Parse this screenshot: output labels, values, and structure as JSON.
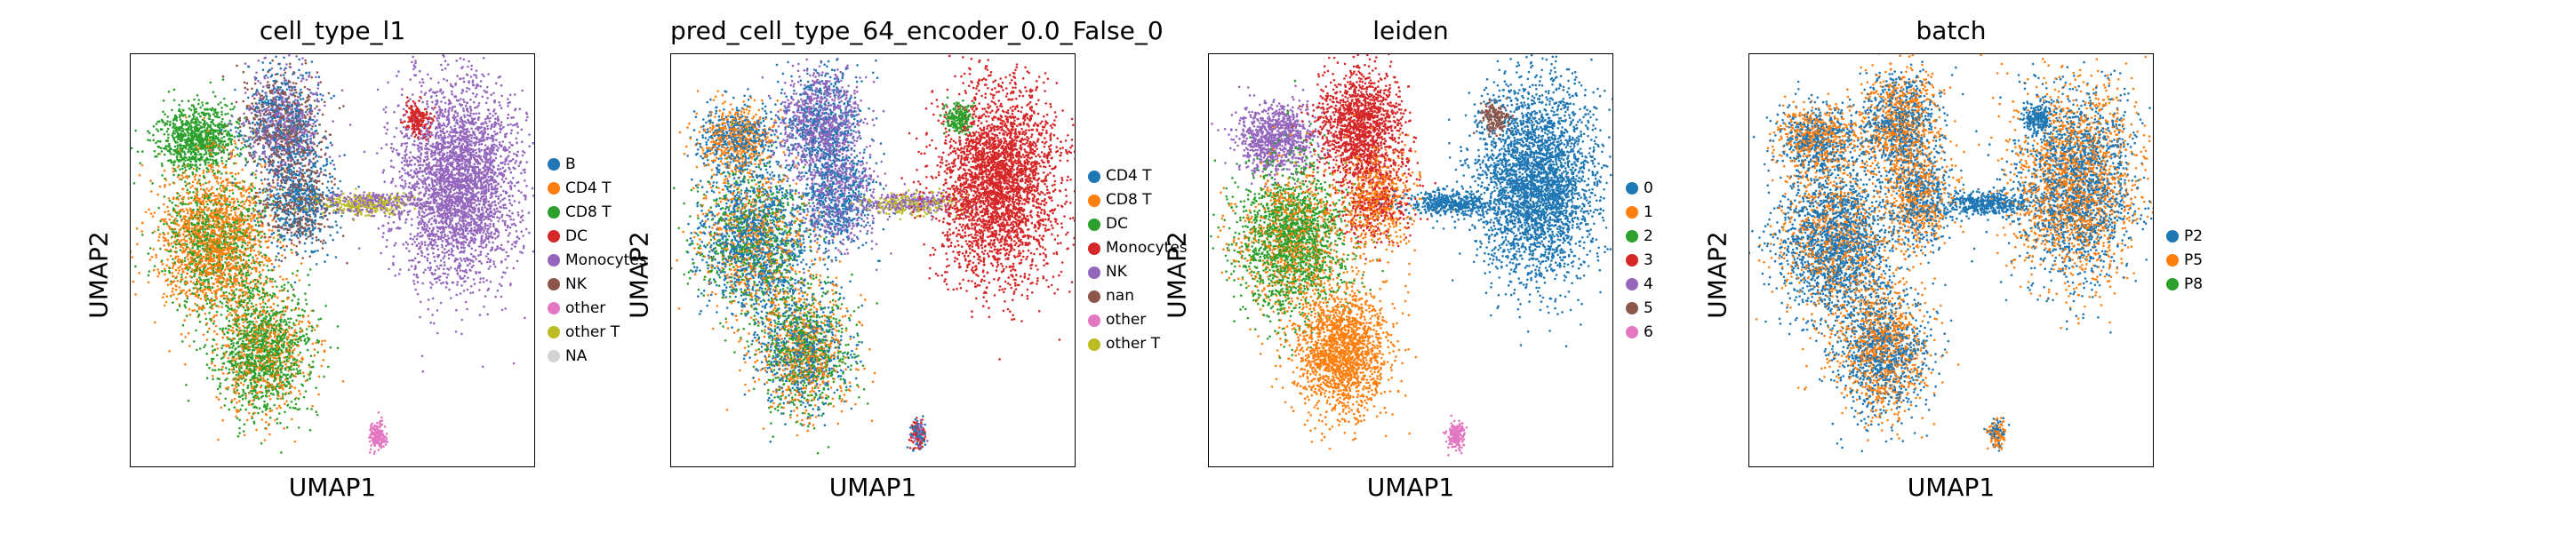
{
  "figure": {
    "panels": [
      {
        "title": "cell_type_l1",
        "xlabel": "UMAP1",
        "ylabel": "UMAP2",
        "legend": [
          {
            "label": "B",
            "color": "#1f77b4"
          },
          {
            "label": "CD4 T",
            "color": "#ff7f0e"
          },
          {
            "label": "CD8 T",
            "color": "#2ca02c"
          },
          {
            "label": "DC",
            "color": "#d62728"
          },
          {
            "label": "Monocytes",
            "color": "#9467bd"
          },
          {
            "label": "NK",
            "color": "#8c564b"
          },
          {
            "label": "other",
            "color": "#e377c2"
          },
          {
            "label": "other T",
            "color": "#bcbd22"
          },
          {
            "label": "NA",
            "color": "#d3d3d3"
          }
        ],
        "clusters": [
          {
            "name": "upper-left",
            "colors": [
              "#2ca02c"
            ]
          },
          {
            "name": "mid-left",
            "colors": [
              "#ff7f0e",
              "#ff7f0e",
              "#2ca02c"
            ]
          },
          {
            "name": "lower-left",
            "colors": [
              "#2ca02c",
              "#ff7f0e",
              "#2ca02c"
            ]
          },
          {
            "name": "top-center",
            "colors": [
              "#1f77b4",
              "#8c564b",
              "#9467bd"
            ]
          },
          {
            "name": "mid-center",
            "colors": [
              "#8c564b",
              "#1f77b4"
            ]
          },
          {
            "name": "bridge",
            "colors": [
              "#9467bd",
              "#bcbd22"
            ]
          },
          {
            "name": "right",
            "colors": [
              "#9467bd"
            ]
          },
          {
            "name": "right-top",
            "colors": [
              "#d62728"
            ]
          },
          {
            "name": "bottom-island",
            "colors": [
              "#e377c2"
            ]
          }
        ]
      },
      {
        "title": "pred_cell_type_64_encoder_0.0_False_0",
        "xlabel": "UMAP1",
        "ylabel": "UMAP2",
        "legend": [
          {
            "label": "CD4 T",
            "color": "#1f77b4"
          },
          {
            "label": "CD8 T",
            "color": "#ff7f0e"
          },
          {
            "label": "DC",
            "color": "#2ca02c"
          },
          {
            "label": "Monocytes",
            "color": "#d62728"
          },
          {
            "label": "NK",
            "color": "#9467bd"
          },
          {
            "label": "nan",
            "color": "#8c564b"
          },
          {
            "label": "other",
            "color": "#e377c2"
          },
          {
            "label": "other T",
            "color": "#bcbd22"
          }
        ],
        "clusters": [
          {
            "name": "upper-left",
            "colors": [
              "#ff7f0e",
              "#1f77b4"
            ]
          },
          {
            "name": "mid-left",
            "colors": [
              "#1f77b4",
              "#1f77b4",
              "#ff7f0e",
              "#2ca02c"
            ]
          },
          {
            "name": "lower-left",
            "colors": [
              "#ff7f0e",
              "#1f77b4",
              "#2ca02c"
            ]
          },
          {
            "name": "top-center",
            "colors": [
              "#9467bd",
              "#9467bd",
              "#1f77b4"
            ]
          },
          {
            "name": "mid-center",
            "colors": [
              "#9467bd",
              "#1f77b4"
            ]
          },
          {
            "name": "bridge",
            "colors": [
              "#9467bd",
              "#bcbd22"
            ]
          },
          {
            "name": "right",
            "colors": [
              "#d62728"
            ]
          },
          {
            "name": "right-top",
            "colors": [
              "#2ca02c"
            ]
          },
          {
            "name": "bottom-island",
            "colors": [
              "#9467bd",
              "#1f77b4",
              "#d62728"
            ]
          }
        ]
      },
      {
        "title": "leiden",
        "xlabel": "UMAP1",
        "ylabel": "UMAP2",
        "legend": [
          {
            "label": "0",
            "color": "#1f77b4"
          },
          {
            "label": "1",
            "color": "#ff7f0e"
          },
          {
            "label": "2",
            "color": "#2ca02c"
          },
          {
            "label": "3",
            "color": "#d62728"
          },
          {
            "label": "4",
            "color": "#9467bd"
          },
          {
            "label": "5",
            "color": "#8c564b"
          },
          {
            "label": "6",
            "color": "#e377c2"
          }
        ],
        "clusters": [
          {
            "name": "upper-left",
            "colors": [
              "#9467bd"
            ]
          },
          {
            "name": "mid-left",
            "colors": [
              "#2ca02c",
              "#2ca02c",
              "#ff7f0e"
            ]
          },
          {
            "name": "lower-left",
            "colors": [
              "#ff7f0e"
            ]
          },
          {
            "name": "top-center",
            "colors": [
              "#d62728"
            ]
          },
          {
            "name": "mid-center",
            "colors": [
              "#d62728",
              "#ff7f0e"
            ]
          },
          {
            "name": "bridge",
            "colors": [
              "#1f77b4"
            ]
          },
          {
            "name": "right",
            "colors": [
              "#1f77b4"
            ]
          },
          {
            "name": "right-top",
            "colors": [
              "#8c564b"
            ]
          },
          {
            "name": "bottom-island",
            "colors": [
              "#e377c2"
            ]
          }
        ]
      },
      {
        "title": "batch",
        "xlabel": "UMAP1",
        "ylabel": "UMAP2",
        "legend": [
          {
            "label": "P2",
            "color": "#1f77b4"
          },
          {
            "label": "P5",
            "color": "#ff7f0e"
          },
          {
            "label": "P8",
            "color": "#2ca02c"
          }
        ],
        "clusters": [
          {
            "name": "upper-left",
            "colors": [
              "#1f77b4",
              "#ff7f0e"
            ]
          },
          {
            "name": "mid-left",
            "colors": [
              "#1f77b4",
              "#1f77b4",
              "#ff7f0e"
            ]
          },
          {
            "name": "lower-left",
            "colors": [
              "#ff7f0e",
              "#1f77b4"
            ]
          },
          {
            "name": "top-center",
            "colors": [
              "#ff7f0e",
              "#1f77b4"
            ]
          },
          {
            "name": "mid-center",
            "colors": [
              "#1f77b4",
              "#ff7f0e"
            ]
          },
          {
            "name": "bridge",
            "colors": [
              "#1f77b4"
            ]
          },
          {
            "name": "right",
            "colors": [
              "#1f77b4",
              "#ff7f0e"
            ]
          },
          {
            "name": "right-top",
            "colors": [
              "#1f77b4"
            ]
          },
          {
            "name": "bottom-island",
            "colors": [
              "#1f77b4",
              "#ff7f0e"
            ]
          }
        ]
      }
    ]
  },
  "chart_data": [
    {
      "type": "scatter",
      "title": "cell_type_l1",
      "xlabel": "UMAP1",
      "ylabel": "UMAP2",
      "legend": [
        "B",
        "CD4 T",
        "CD8 T",
        "DC",
        "Monocytes",
        "NK",
        "other",
        "other T",
        "NA"
      ],
      "grid": false,
      "legend_position": "right"
    },
    {
      "type": "scatter",
      "title": "pred_cell_type_64_encoder_0.0_False_0",
      "xlabel": "UMAP1",
      "ylabel": "UMAP2",
      "legend": [
        "CD4 T",
        "CD8 T",
        "DC",
        "Monocytes",
        "NK",
        "nan",
        "other",
        "other T"
      ],
      "grid": false,
      "legend_position": "right"
    },
    {
      "type": "scatter",
      "title": "leiden",
      "xlabel": "UMAP1",
      "ylabel": "UMAP2",
      "legend": [
        "0",
        "1",
        "2",
        "3",
        "4",
        "5",
        "6"
      ],
      "grid": false,
      "legend_position": "right"
    },
    {
      "type": "scatter",
      "title": "batch",
      "xlabel": "UMAP1",
      "ylabel": "UMAP2",
      "legend": [
        "P2",
        "P5",
        "P8"
      ],
      "grid": false,
      "legend_position": "right"
    }
  ]
}
